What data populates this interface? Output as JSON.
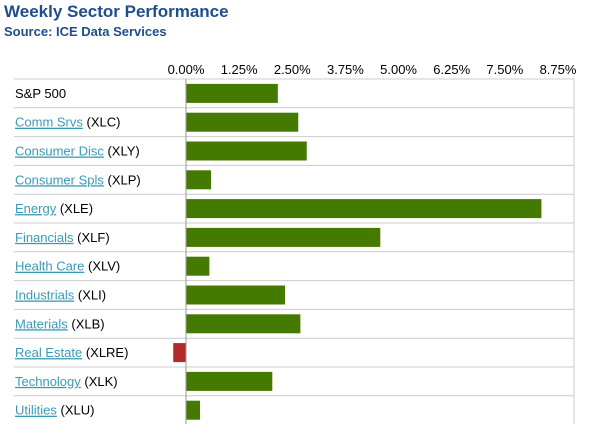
{
  "header": {
    "title": "Weekly Sector Performance",
    "subtitle": "Source: ICE Data Services"
  },
  "chart_data": {
    "type": "bar",
    "orientation": "horizontal",
    "x_ticks": [
      "0.00%",
      "1.25%",
      "2.50%",
      "3.75%",
      "5.00%",
      "6.25%",
      "7.50%",
      "8.75%"
    ],
    "xlim": [
      0,
      8.75
    ],
    "categories": [
      {
        "name": "S&P 500",
        "ticker": "",
        "link": false
      },
      {
        "name": "Comm Srvs",
        "ticker": "(XLC)",
        "link": true
      },
      {
        "name": "Consumer Disc",
        "ticker": "(XLY)",
        "link": true
      },
      {
        "name": "Consumer Spls",
        "ticker": "(XLP)",
        "link": true
      },
      {
        "name": "Energy",
        "ticker": "(XLE)",
        "link": true
      },
      {
        "name": "Financials",
        "ticker": "(XLF)",
        "link": true
      },
      {
        "name": "Health Care",
        "ticker": "(XLV)",
        "link": true
      },
      {
        "name": "Industrials",
        "ticker": "(XLI)",
        "link": true
      },
      {
        "name": "Materials",
        "ticker": "(XLB)",
        "link": true
      },
      {
        "name": "Real Estate",
        "ticker": "(XLRE)",
        "link": true
      },
      {
        "name": "Technology",
        "ticker": "(XLK)",
        "link": true
      },
      {
        "name": "Utilities",
        "ticker": "(XLU)",
        "link": true
      }
    ],
    "values": [
      2.16,
      2.64,
      2.84,
      0.59,
      8.36,
      4.57,
      0.55,
      2.33,
      2.69,
      -0.3,
      2.03,
      0.33
    ],
    "colors": {
      "positive": "#457a00",
      "negative": "#b22a2a",
      "grid": "#cccccc",
      "axis": "#999999"
    },
    "grid": true
  }
}
